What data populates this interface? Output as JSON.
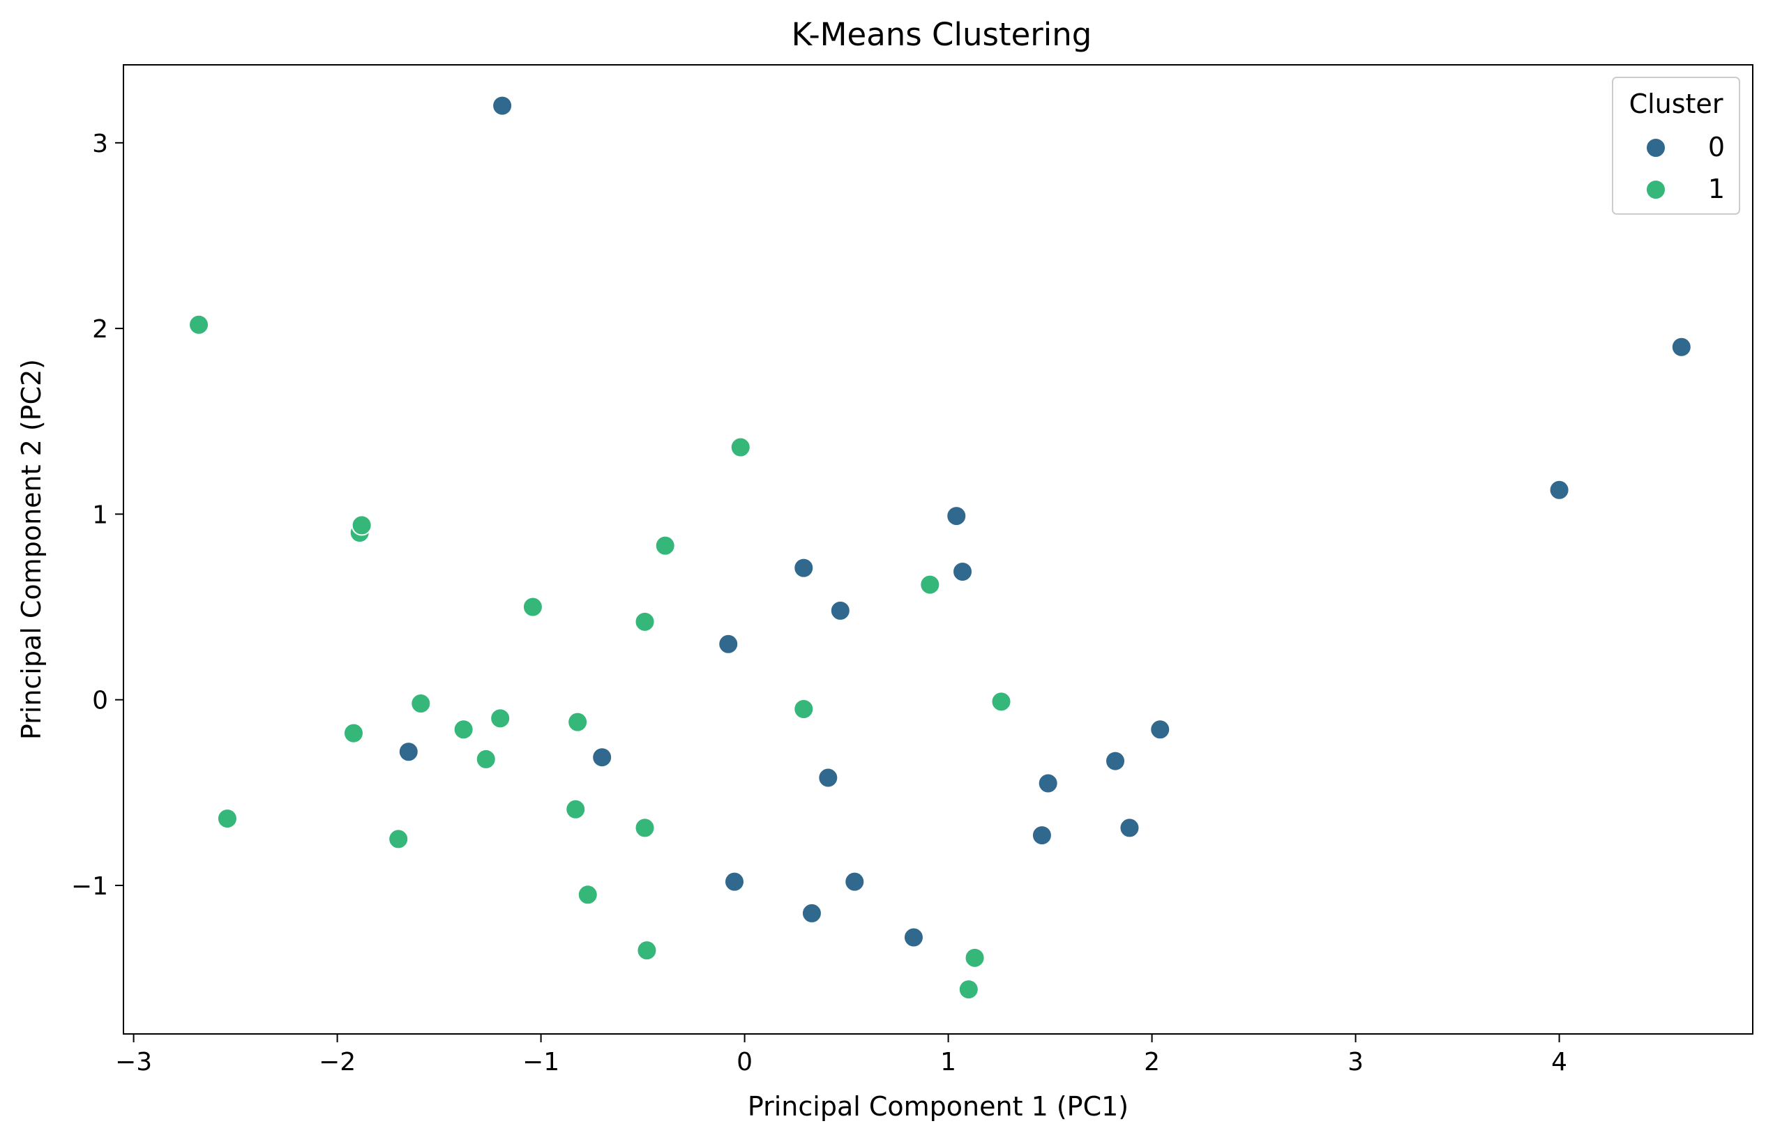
{
  "chart_data": {
    "type": "scatter",
    "title": "K-Means Clustering",
    "xlabel": "Principal Component 1 (PC1)",
    "ylabel": "Principal Component 2 (PC2)",
    "xlim": [
      -3.05,
      4.95
    ],
    "ylim": [
      -1.8,
      3.42
    ],
    "xticks": [
      -3,
      -2,
      -1,
      0,
      1,
      2,
      3,
      4
    ],
    "xtick_labels": [
      "−3",
      "−2",
      "−1",
      "0",
      "1",
      "2",
      "3",
      "4"
    ],
    "yticks": [
      -1,
      0,
      1,
      2,
      3
    ],
    "ytick_labels": [
      "−1",
      "0",
      "1",
      "2",
      "3"
    ],
    "grid": false,
    "legend": {
      "title": "Cluster",
      "placement": "top-right",
      "entries": [
        "0",
        "1"
      ]
    },
    "colors": [
      "#31688e",
      "#35b779"
    ],
    "series": [
      {
        "name": "0",
        "x": [
          -1.19,
          4.6,
          4.0,
          1.04,
          0.29,
          1.07,
          0.47,
          -0.08,
          -1.65,
          -0.7,
          0.41,
          1.49,
          2.04,
          1.82,
          1.46,
          1.89,
          -0.05,
          0.54,
          0.33,
          0.83
        ],
        "y": [
          3.2,
          1.9,
          1.13,
          0.99,
          0.71,
          0.69,
          0.48,
          0.3,
          -0.28,
          -0.31,
          -0.42,
          -0.45,
          -0.16,
          -0.33,
          -0.73,
          -0.69,
          -0.98,
          -0.98,
          -1.15,
          -1.28
        ]
      },
      {
        "name": "1",
        "x": [
          -2.68,
          -0.02,
          -1.89,
          -1.88,
          -0.39,
          0.91,
          -1.04,
          -0.49,
          -1.59,
          -1.92,
          -1.38,
          -1.2,
          -1.27,
          -0.82,
          0.29,
          1.26,
          -2.54,
          -1.7,
          -0.83,
          -0.49,
          -0.77,
          -0.48,
          1.13,
          1.1
        ],
        "y": [
          2.02,
          1.36,
          0.9,
          0.94,
          0.83,
          0.62,
          0.5,
          0.42,
          -0.02,
          -0.18,
          -0.16,
          -0.1,
          -0.32,
          -0.12,
          -0.05,
          -0.01,
          -0.64,
          -0.75,
          -0.59,
          -0.69,
          -1.05,
          -1.35,
          -1.39,
          -1.56
        ]
      }
    ]
  }
}
